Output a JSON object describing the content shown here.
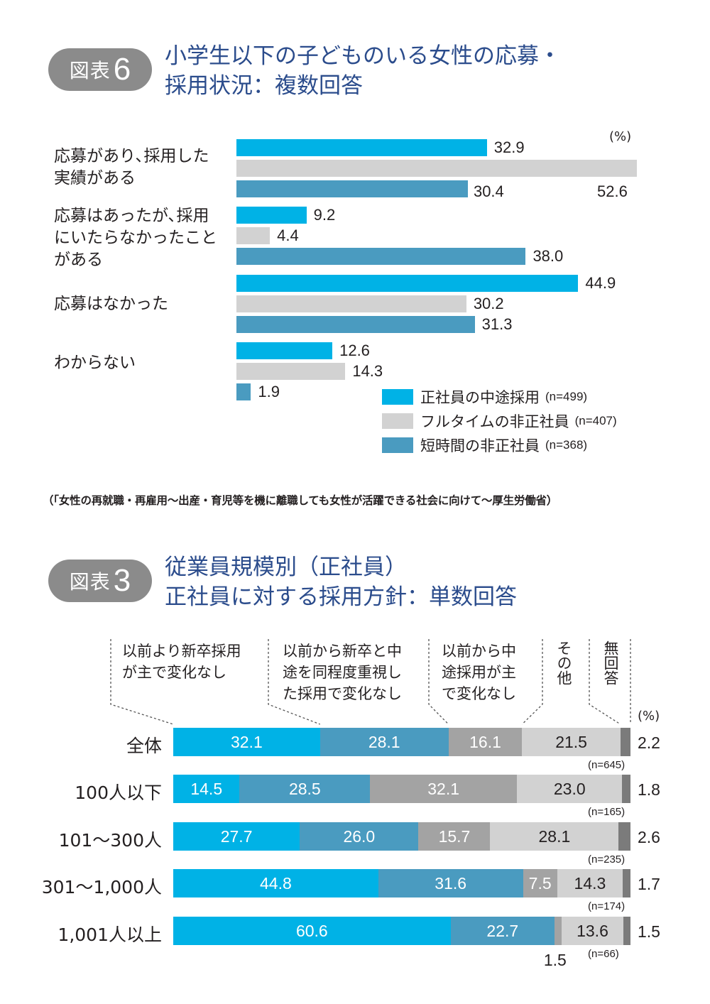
{
  "colors": {
    "cyan": "#00b2e6",
    "lightgray": "#d2d2d2",
    "steelblue": "#4a9bc0",
    "midgray": "#a3a3a3",
    "darkgray": "#7b7b7b",
    "badge": "#8b8b8b",
    "title": "#2b4c8c"
  },
  "fig6": {
    "badge_label": "図表",
    "badge_number": "6",
    "title_line1": "小学生以下の子どものいる女性の応募・",
    "title_line2": "採用状況：複数回答"
  },
  "fig3": {
    "badge_label": "図表",
    "badge_number": "3",
    "title_line1": "従業員規模別（正社員）",
    "title_line2": "正社員に対する採用方針：単数回答"
  },
  "source": "（「女性の再就職・再雇用〜出産・育児等を機に離職しても女性が活躍できる社会に向けて〜厚生労働省）",
  "chart_data": [
    {
      "type": "bar",
      "orientation": "horizontal",
      "unit": "(%)",
      "categories": [
        "応募があり､採用した\n実績がある",
        "応募はあったが､採用\nにいたらなかったこと\nがある",
        "応募はなかった",
        "わからない"
      ],
      "series": [
        {
          "name": "正社員の中途採用",
          "n": "(n=499)",
          "values": [
            32.9,
            9.2,
            44.9,
            12.6
          ]
        },
        {
          "name": "フルタイムの非正社員",
          "n": "(n=407)",
          "values": [
            52.6,
            4.4,
            30.2,
            14.3
          ]
        },
        {
          "name": "短時間の非正社員",
          "n": "(n=368)",
          "values": [
            30.4,
            38.0,
            31.3,
            1.9
          ]
        }
      ],
      "xlim": [
        0,
        52.6
      ],
      "legend": "bottom-right"
    },
    {
      "type": "bar",
      "orientation": "horizontal",
      "stacked": true,
      "unit": "(%)",
      "series_names": [
        "以前より新卒採用\nが主で変化なし",
        "以前から新卒と中\n途を同程度重視し\nた採用で変化なし",
        "以前から中\n途採用が主\nで変化なし",
        "その他",
        "無回答"
      ],
      "rows": [
        {
          "label": "全体",
          "n": "(n=645)",
          "values": [
            32.1,
            28.1,
            16.1,
            21.5,
            2.2
          ]
        },
        {
          "label": "100人以下",
          "n": "(n=165)",
          "values": [
            14.5,
            28.5,
            32.1,
            23.0,
            1.8
          ]
        },
        {
          "label": "101〜300人",
          "n": "(n=235)",
          "values": [
            27.7,
            26.0,
            15.7,
            28.1,
            2.6
          ]
        },
        {
          "label": "301〜1,000人",
          "n": "(n=174)",
          "values": [
            44.8,
            31.6,
            7.5,
            14.3,
            1.7
          ]
        },
        {
          "label": "1,001人以上",
          "n": "(n=66)",
          "values": [
            60.6,
            22.7,
            1.5,
            13.6,
            1.5
          ]
        }
      ],
      "xlim": [
        0,
        100
      ]
    }
  ]
}
